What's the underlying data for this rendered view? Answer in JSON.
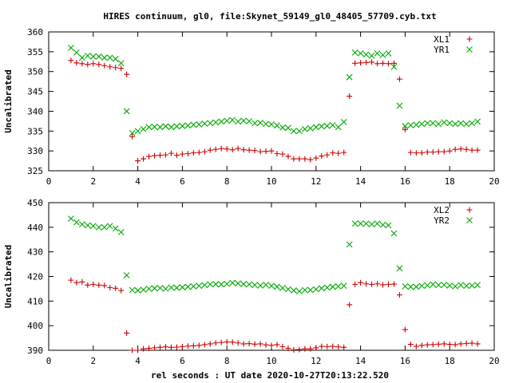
{
  "figure": {
    "title": "HIRES continuum, gl0, file:Skynet_59149_gl0_48405_57709.cyb.txt",
    "xlabel": "rel seconds : UT date 2020-10-27T20:13:22.520"
  },
  "chart_data": [
    {
      "type": "scatter",
      "ylabel": "Uncalibrated",
      "xlim": [
        0,
        20
      ],
      "ylim": [
        325,
        360
      ],
      "xticks": [
        0,
        2,
        4,
        6,
        8,
        10,
        12,
        14,
        16,
        18,
        20
      ],
      "yticks": [
        325,
        330,
        335,
        340,
        345,
        350,
        355,
        360
      ],
      "legend_position": "top-right",
      "series": [
        {
          "name": "XL1",
          "marker": "plus",
          "color": "#cc0000",
          "x": [
            1.0,
            1.25,
            1.5,
            1.75,
            2.0,
            2.25,
            2.5,
            2.75,
            3.0,
            3.25,
            3.5,
            3.75,
            4.0,
            4.25,
            4.5,
            4.75,
            5.0,
            5.25,
            5.5,
            5.75,
            6.0,
            6.25,
            6.5,
            6.75,
            7.0,
            7.25,
            7.5,
            7.75,
            8.0,
            8.25,
            8.5,
            8.75,
            9.0,
            9.25,
            9.5,
            9.75,
            10.0,
            10.25,
            10.5,
            10.75,
            11.0,
            11.25,
            11.5,
            11.75,
            12.0,
            12.25,
            12.5,
            12.75,
            13.0,
            13.25,
            13.5,
            13.75,
            14.0,
            14.25,
            14.5,
            14.75,
            15.0,
            15.25,
            15.5,
            15.75,
            16.0,
            16.25,
            16.5,
            16.75,
            17.0,
            17.25,
            17.5,
            17.75,
            18.0,
            18.25,
            18.5,
            18.75,
            19.0,
            19.25
          ],
          "y": [
            352.8,
            352.2,
            352.0,
            351.8,
            352.0,
            351.8,
            351.5,
            351.2,
            351.0,
            350.8,
            349.3,
            333.6,
            327.5,
            328.0,
            328.6,
            328.8,
            328.9,
            329.0,
            329.4,
            328.9,
            329.2,
            329.3,
            329.5,
            329.6,
            329.8,
            330.2,
            330.4,
            330.6,
            330.5,
            330.3,
            330.6,
            330.3,
            330.2,
            330.1,
            329.8,
            329.9,
            330.0,
            329.3,
            329.2,
            328.6,
            328.0,
            328.0,
            328.0,
            327.8,
            328.2,
            328.7,
            329.0,
            329.5,
            329.4,
            329.6,
            343.8,
            352.1,
            352.2,
            352.3,
            352.4,
            352.0,
            352.1,
            352.0,
            352.1,
            348.1,
            335.4,
            329.6,
            329.5,
            329.5,
            329.7,
            329.7,
            329.8,
            329.8,
            330.0,
            330.4,
            330.5,
            330.4,
            330.2,
            330.2
          ]
        },
        {
          "name": "YR1",
          "marker": "cross",
          "color": "#00aa00",
          "x": [
            1.0,
            1.25,
            1.5,
            1.75,
            2.0,
            2.25,
            2.5,
            2.75,
            3.0,
            3.25,
            3.5,
            3.75,
            4.0,
            4.25,
            4.5,
            4.75,
            5.0,
            5.25,
            5.5,
            5.75,
            6.0,
            6.25,
            6.5,
            6.75,
            7.0,
            7.25,
            7.5,
            7.75,
            8.0,
            8.25,
            8.5,
            8.75,
            9.0,
            9.25,
            9.5,
            9.75,
            10.0,
            10.25,
            10.5,
            10.75,
            11.0,
            11.25,
            11.5,
            11.75,
            12.0,
            12.25,
            12.5,
            12.75,
            13.0,
            13.25,
            13.5,
            13.75,
            14.0,
            14.25,
            14.5,
            14.75,
            15.0,
            15.25,
            15.5,
            15.75,
            16.0,
            16.25,
            16.5,
            16.75,
            17.0,
            17.25,
            17.5,
            17.75,
            18.0,
            18.25,
            18.5,
            18.75,
            19.0,
            19.25
          ],
          "y": [
            356.0,
            354.8,
            353.5,
            354.0,
            353.8,
            353.8,
            353.5,
            353.5,
            353.2,
            352.1,
            340.0,
            334.5,
            335.0,
            335.5,
            336.0,
            336.1,
            336.0,
            336.2,
            336.0,
            336.2,
            336.3,
            336.4,
            336.6,
            336.7,
            336.9,
            337.0,
            337.2,
            337.4,
            337.6,
            337.8,
            337.4,
            337.6,
            337.5,
            337.0,
            337.1,
            336.8,
            336.7,
            336.4,
            335.9,
            335.8,
            335.0,
            335.0,
            335.5,
            335.7,
            336.0,
            336.2,
            336.3,
            336.5,
            336.0,
            337.3,
            348.6,
            354.8,
            354.6,
            354.3,
            354.0,
            354.6,
            354.2,
            354.6,
            351.2,
            341.4,
            336.3,
            336.5,
            336.6,
            336.8,
            337.0,
            337.0,
            336.8,
            337.2,
            337.0,
            336.8,
            337.0,
            336.8,
            337.0,
            337.4
          ]
        }
      ]
    },
    {
      "type": "scatter",
      "ylabel": "Uncalibrated",
      "xlim": [
        0,
        20
      ],
      "ylim": [
        390,
        450
      ],
      "xticks": [
        0,
        2,
        4,
        6,
        8,
        10,
        12,
        14,
        16,
        18,
        20
      ],
      "yticks": [
        390,
        400,
        410,
        420,
        430,
        440,
        450
      ],
      "legend_position": "top-right",
      "series": [
        {
          "name": "XL2",
          "marker": "plus",
          "color": "#cc0000",
          "x": [
            1.0,
            1.25,
            1.5,
            1.75,
            2.0,
            2.25,
            2.5,
            2.75,
            3.0,
            3.25,
            3.5,
            3.75,
            4.0,
            4.25,
            4.5,
            4.75,
            5.0,
            5.25,
            5.5,
            5.75,
            6.0,
            6.25,
            6.5,
            6.75,
            7.0,
            7.25,
            7.5,
            7.75,
            8.0,
            8.25,
            8.5,
            8.75,
            9.0,
            9.25,
            9.5,
            9.75,
            10.0,
            10.25,
            10.5,
            10.75,
            11.0,
            11.25,
            11.5,
            11.75,
            12.0,
            12.25,
            12.5,
            12.75,
            13.0,
            13.25,
            13.5,
            13.75,
            14.0,
            14.25,
            14.5,
            14.75,
            15.0,
            15.25,
            15.5,
            15.75,
            16.0,
            16.25,
            16.5,
            16.75,
            17.0,
            17.25,
            17.5,
            17.75,
            18.0,
            18.25,
            18.5,
            18.75,
            19.0,
            19.25
          ],
          "y": [
            418.5,
            417.5,
            417.8,
            416.5,
            416.8,
            416.5,
            416.3,
            415.5,
            415.2,
            414.3,
            397.0,
            390.0,
            390.0,
            390.6,
            390.8,
            391.0,
            391.2,
            391.4,
            391.2,
            391.3,
            391.5,
            391.7,
            391.8,
            392.0,
            392.3,
            392.6,
            393.0,
            393.2,
            393.4,
            393.3,
            393.0,
            392.6,
            392.7,
            392.5,
            392.6,
            392.2,
            392.0,
            392.3,
            391.5,
            390.8,
            390.2,
            390.3,
            390.6,
            390.6,
            391.0,
            391.6,
            391.5,
            391.6,
            391.4,
            391.2,
            408.5,
            416.8,
            417.5,
            417.0,
            416.8,
            417.0,
            416.6,
            416.8,
            416.9,
            412.5,
            398.4,
            392.4,
            391.6,
            392.0,
            392.2,
            392.3,
            392.5,
            392.6,
            392.4,
            392.3,
            392.6,
            392.8,
            392.9,
            392.6
          ]
        },
        {
          "name": "YR2",
          "marker": "cross",
          "color": "#00aa00",
          "x": [
            1.0,
            1.25,
            1.5,
            1.75,
            2.0,
            2.25,
            2.5,
            2.75,
            3.0,
            3.25,
            3.5,
            3.75,
            4.0,
            4.25,
            4.5,
            4.75,
            5.0,
            5.25,
            5.5,
            5.75,
            6.0,
            6.25,
            6.5,
            6.75,
            7.0,
            7.25,
            7.5,
            7.75,
            8.0,
            8.25,
            8.5,
            8.75,
            9.0,
            9.25,
            9.5,
            9.75,
            10.0,
            10.25,
            10.5,
            10.75,
            11.0,
            11.25,
            11.5,
            11.75,
            12.0,
            12.25,
            12.5,
            12.75,
            13.0,
            13.25,
            13.5,
            13.75,
            14.0,
            14.25,
            14.5,
            14.75,
            15.0,
            15.25,
            15.5,
            15.75,
            16.0,
            16.25,
            16.5,
            16.75,
            17.0,
            17.25,
            17.5,
            17.75,
            18.0,
            18.25,
            18.5,
            18.75,
            19.0,
            19.25
          ],
          "y": [
            443.5,
            442.0,
            441.2,
            440.8,
            440.5,
            440.0,
            440.0,
            440.5,
            439.5,
            438.0,
            420.5,
            414.5,
            414.3,
            414.6,
            415.0,
            415.2,
            415.3,
            415.0,
            415.5,
            415.4,
            415.6,
            415.8,
            416.0,
            416.2,
            416.5,
            416.8,
            416.9,
            416.8,
            417.0,
            417.4,
            417.2,
            416.9,
            416.8,
            416.5,
            416.3,
            416.6,
            416.2,
            415.8,
            415.3,
            414.8,
            414.3,
            414.0,
            414.5,
            414.5,
            414.8,
            415.2,
            415.5,
            415.8,
            416.0,
            416.2,
            433.0,
            441.5,
            441.5,
            441.5,
            441.2,
            441.5,
            441.0,
            440.8,
            437.5,
            423.3,
            416.0,
            415.8,
            415.8,
            416.2,
            416.4,
            416.8,
            416.5,
            416.6,
            416.3,
            416.0,
            416.5,
            416.2,
            416.3,
            416.5
          ]
        }
      ]
    }
  ]
}
